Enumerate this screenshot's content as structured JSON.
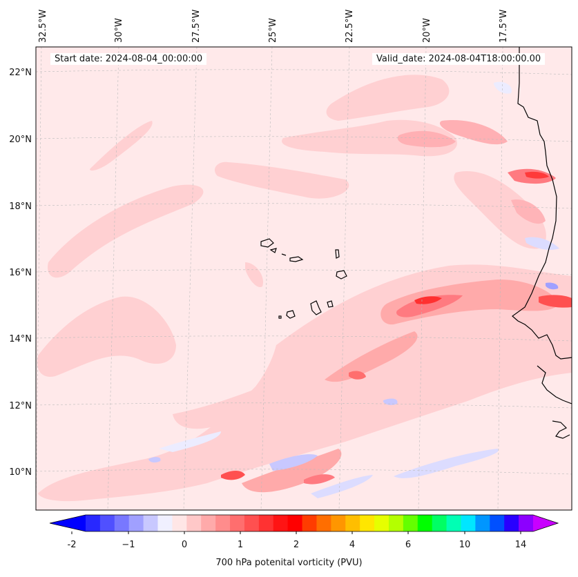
{
  "map": {
    "start_date": "Start date: 2024-08-04_00:00:00",
    "valid_date": "Valid_date: 2024-08-04T18:00:00.00",
    "lon_labels": [
      "32.5°W",
      "30°W",
      "27.5°W",
      "25°W",
      "22.5°W",
      "20°W",
      "17.5°W"
    ],
    "lat_labels": [
      "22°N",
      "20°N",
      "18°N",
      "16°N",
      "14°N",
      "12°N",
      "10°N"
    ],
    "region": "Cabo Verde and West African coast"
  },
  "colorbar": {
    "title": "700 hPa potenital vorticity (PVU)",
    "ticks": [
      "-2",
      "−1",
      "0",
      "1",
      "2",
      "4",
      "6",
      "10",
      "14"
    ],
    "colors": [
      "#0000ff",
      "#2828ff",
      "#5050ff",
      "#7878ff",
      "#a0a0ff",
      "#c8c8ff",
      "#f0f0ff",
      "#ffe6e6",
      "#ffc8c8",
      "#ffaaaa",
      "#ff8c8c",
      "#ff6e6e",
      "#ff5050",
      "#ff3232",
      "#ff1414",
      "#ff0000",
      "#ff3c00",
      "#ff6e00",
      "#ff9600",
      "#ffbe00",
      "#ffe600",
      "#e6ff00",
      "#b4ff00",
      "#64ff00",
      "#00ff00",
      "#00ff64",
      "#00ffb4",
      "#00e6ff",
      "#0096ff",
      "#0050ff",
      "#2800ff",
      "#8c00ff",
      "#c800ff"
    ]
  }
}
